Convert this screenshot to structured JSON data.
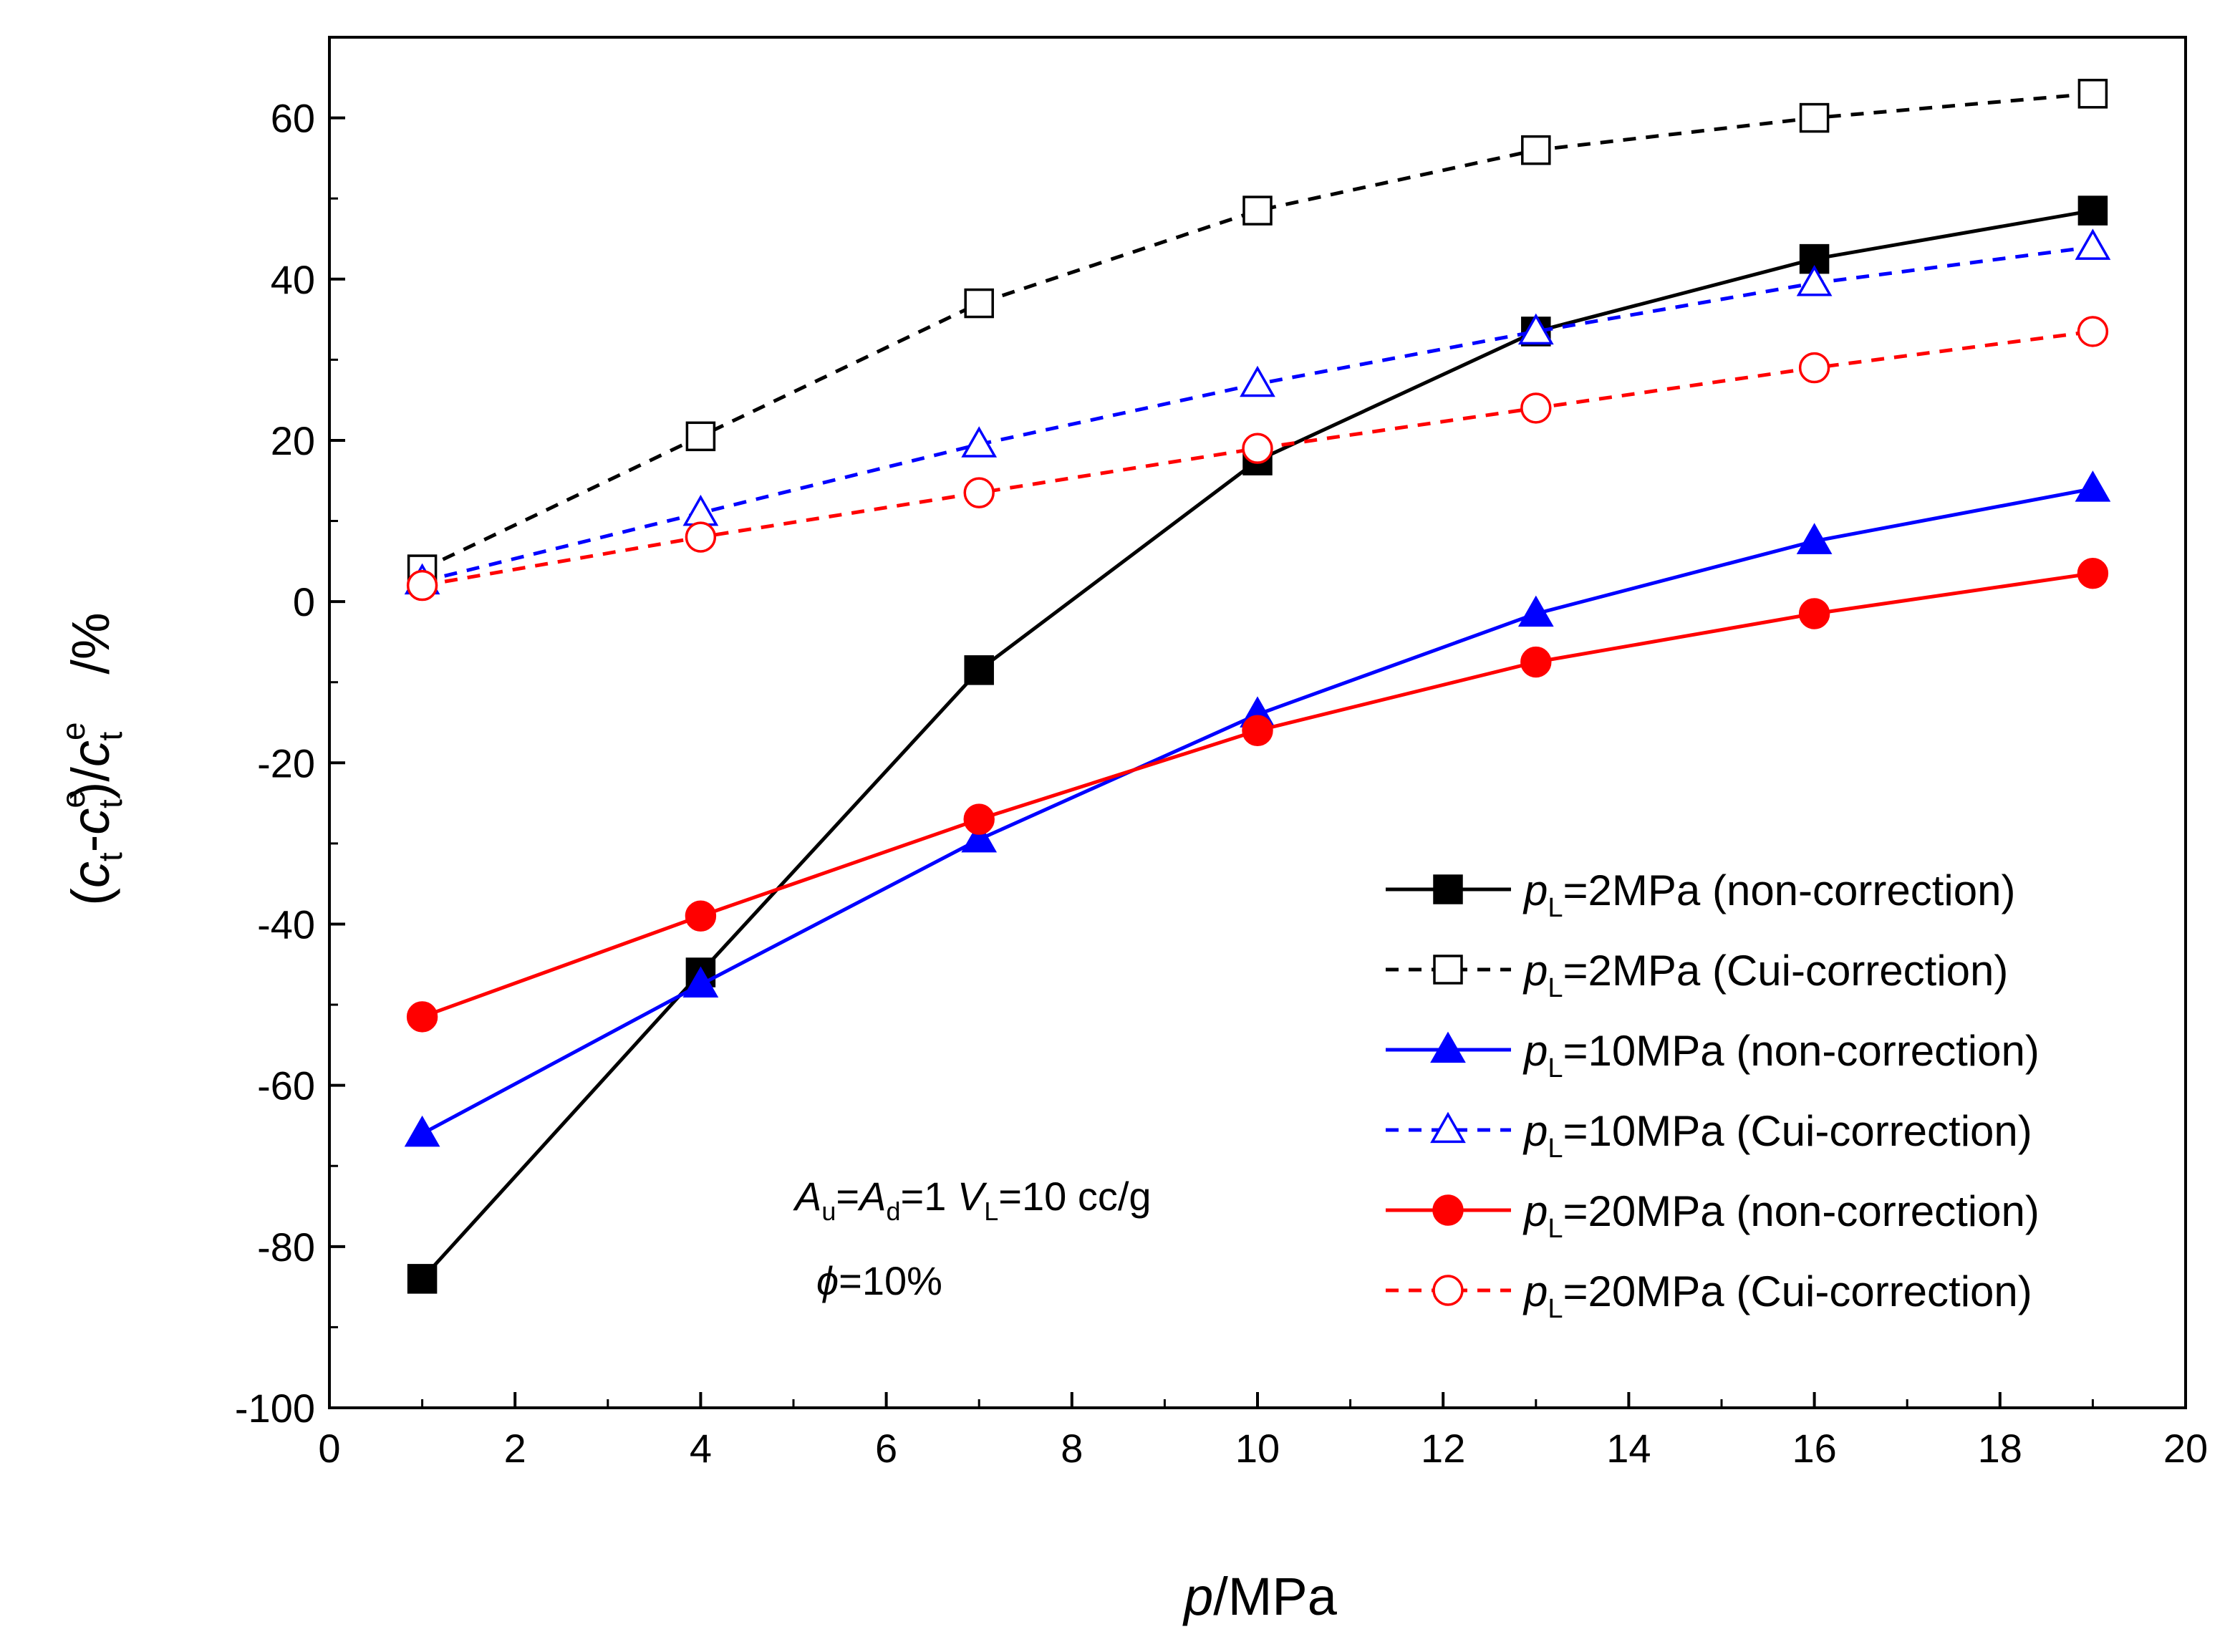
{
  "chart_data": {
    "type": "line",
    "xlabel": {
      "var": "p",
      "unit": "/MPa"
    },
    "ylabel": {
      "open": "(",
      "c1": "c",
      "c1_sub": "t",
      "dash": "-",
      "c2": "c",
      "c2_sup": "e",
      "c2_sub": "t",
      "mid": ")/",
      "c3": "c",
      "c3_sup": "e",
      "c3_sub": "t",
      "unit": "/%"
    },
    "xlim": [
      0,
      20
    ],
    "ylim": [
      -100,
      70
    ],
    "xticks": [
      0,
      2,
      4,
      6,
      8,
      10,
      12,
      14,
      16,
      18,
      20
    ],
    "yticks": [
      -100,
      -80,
      -60,
      -40,
      -20,
      0,
      20,
      40,
      60
    ],
    "grid": false,
    "legend_position": "bottom-right",
    "x": [
      1,
      4,
      7,
      10,
      13,
      16,
      19
    ],
    "series": [
      {
        "name_var": "p",
        "name_sub": "L",
        "name_rest": "=2MPa (non-correction)",
        "color": "#000000",
        "marker": "square",
        "filled": true,
        "dashed": false,
        "values": [
          -84,
          -46,
          -8.5,
          17.5,
          33.5,
          42.5,
          48.5
        ]
      },
      {
        "name_var": "p",
        "name_sub": "L",
        "name_rest": "=2MPa (Cui-correction)",
        "color": "#000000",
        "marker": "square",
        "filled": false,
        "dashed": true,
        "values": [
          4,
          20.5,
          37,
          48.5,
          56,
          60,
          63
        ]
      },
      {
        "name_var": "p",
        "name_sub": "L",
        "name_rest": "=10MPa (non-correction)",
        "color": "#0000ff",
        "marker": "triangle",
        "filled": true,
        "dashed": false,
        "values": [
          -66,
          -47.5,
          -29.5,
          -14,
          -1.5,
          7.5,
          14
        ]
      },
      {
        "name_var": "p",
        "name_sub": "L",
        "name_rest": "=10MPa (Cui-correction)",
        "color": "#0000ff",
        "marker": "triangle",
        "filled": false,
        "dashed": true,
        "values": [
          2.5,
          11,
          19.5,
          27,
          33.5,
          39.5,
          44
        ]
      },
      {
        "name_var": "p",
        "name_sub": "L",
        "name_rest": "=20MPa (non-correction)",
        "color": "#ff0000",
        "marker": "circle",
        "filled": true,
        "dashed": false,
        "values": [
          -51.5,
          -39,
          -27,
          -16,
          -7.5,
          -1.5,
          3.5
        ]
      },
      {
        "name_var": "p",
        "name_sub": "L",
        "name_rest": "=20MPa (Cui-correction)",
        "color": "#ff0000",
        "marker": "circle",
        "filled": false,
        "dashed": true,
        "values": [
          2,
          8,
          13.5,
          19,
          24,
          29,
          33.5
        ]
      }
    ],
    "annotation": {
      "line1_a": "A",
      "line1_a_sub": "u",
      "line1_eq": "=",
      "line1_b": "A",
      "line1_b_sub": "d",
      "line1_rest": "=1 ",
      "line1_v": "V",
      "line1_v_sub": "L",
      "line1_vrest": "=10 cc/g",
      "line2_phi": "ϕ",
      "line2_rest": "=10%"
    }
  }
}
